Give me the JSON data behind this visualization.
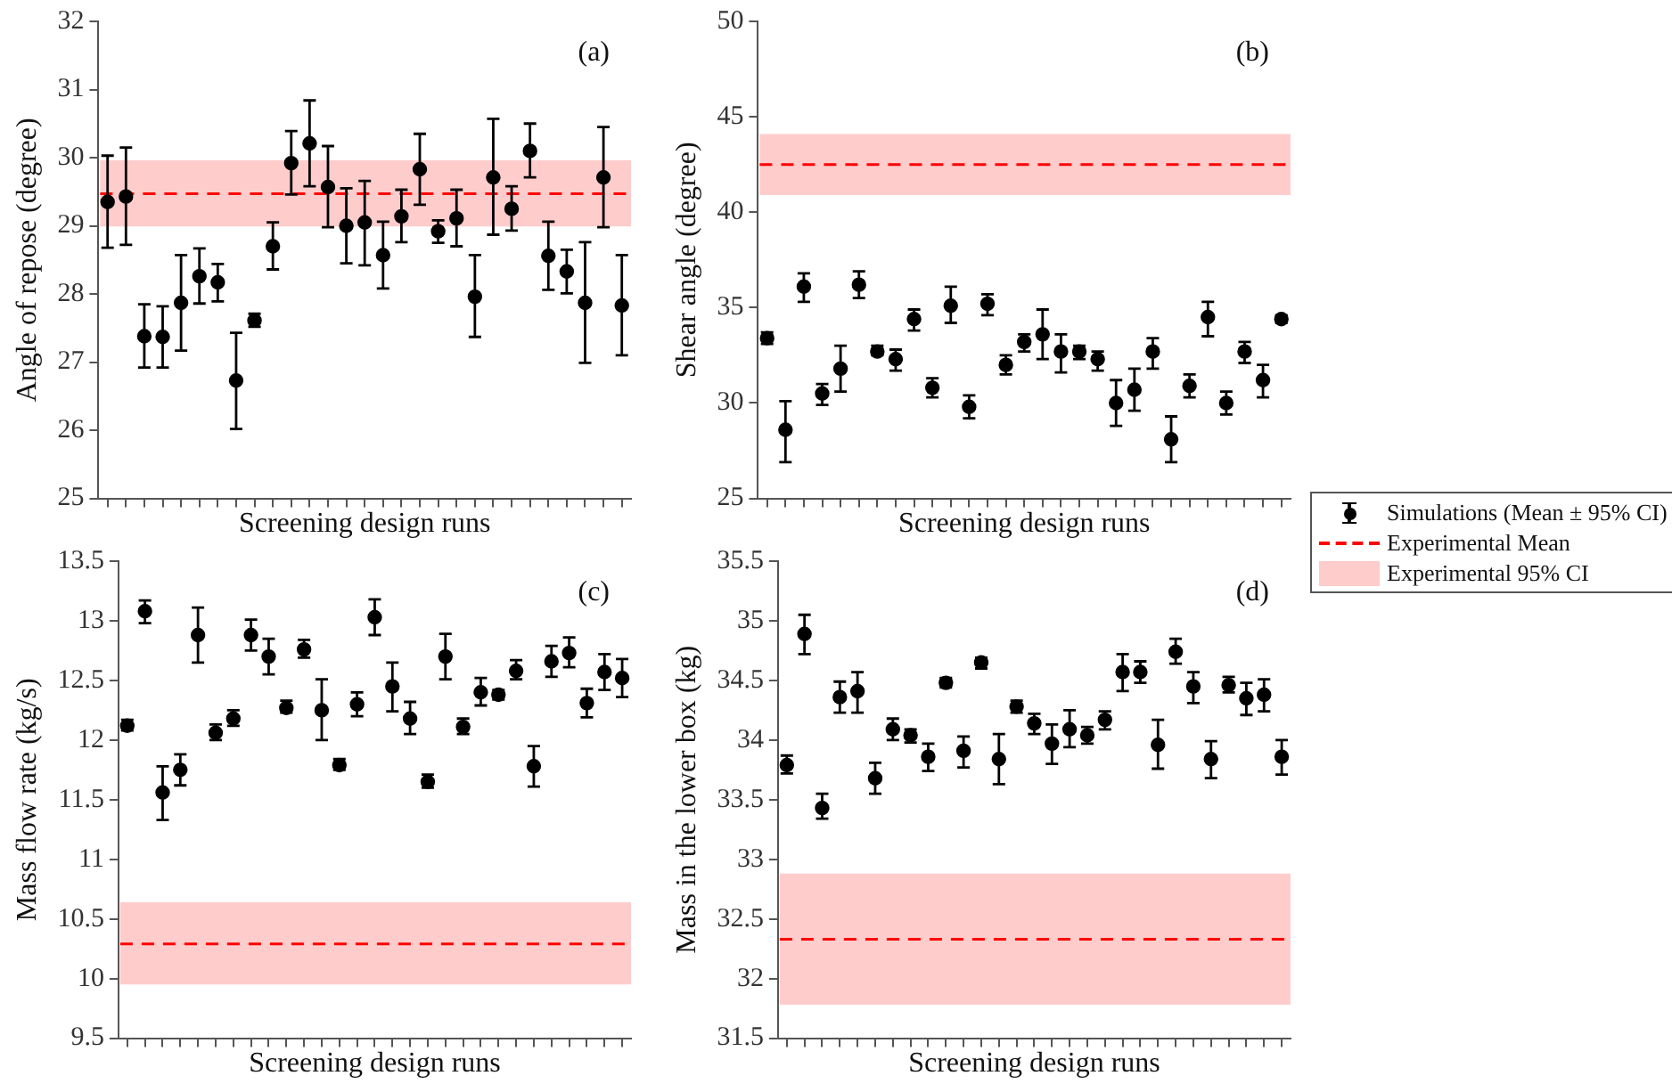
{
  "chart_data": [
    {
      "type": "scatter",
      "ylabel": "Angle of repose (degree)",
      "xlabel": "Screening design runs",
      "annotations": [
        "(a)"
      ],
      "marker": "circle",
      "categories": [
        null,
        null,
        null,
        null,
        null,
        null,
        null,
        null,
        null,
        null,
        null,
        null,
        null,
        null,
        null,
        null,
        null,
        null,
        null,
        null,
        null,
        null,
        null,
        null,
        null,
        null,
        null,
        null,
        null
      ],
      "series": [
        {
          "color": "#000000",
          "values": [
            29.35,
            29.43,
            27.38,
            27.37,
            27.87,
            28.26,
            28.17,
            26.73,
            27.61,
            28.7,
            29.92,
            30.21,
            29.57,
            29.0,
            29.05,
            28.57,
            29.14,
            29.83,
            28.92,
            29.11,
            27.96,
            29.71,
            29.25,
            30.1,
            28.56,
            28.33,
            27.87,
            29.71,
            27.83
          ],
          "errors": [
            [
              28.68,
              30.03
            ],
            [
              28.72,
              30.15
            ],
            [
              26.92,
              27.85
            ],
            [
              26.92,
              27.82
            ],
            [
              27.17,
              28.57
            ],
            [
              27.86,
              28.67
            ],
            [
              27.89,
              28.44
            ],
            [
              26.02,
              27.43
            ],
            [
              27.52,
              27.71
            ],
            [
              28.36,
              29.05
            ],
            [
              29.46,
              30.39
            ],
            [
              29.58,
              30.84
            ],
            [
              28.98,
              30.17
            ],
            [
              28.45,
              29.55
            ],
            [
              28.42,
              29.66
            ],
            [
              28.08,
              29.06
            ],
            [
              28.76,
              29.53
            ],
            [
              29.31,
              30.35
            ],
            [
              28.75,
              29.08
            ],
            [
              28.7,
              29.53
            ],
            [
              27.37,
              28.57
            ],
            [
              28.87,
              30.57
            ],
            [
              28.93,
              29.58
            ],
            [
              29.71,
              30.5
            ],
            [
              28.06,
              29.06
            ],
            [
              28.01,
              28.65
            ],
            [
              26.99,
              28.76
            ],
            [
              28.98,
              30.45
            ],
            [
              27.1,
              28.57
            ]
          ]
        }
      ],
      "ylim": [
        25,
        32
      ],
      "yticks": [
        25,
        26,
        27,
        28,
        29,
        30,
        31,
        32
      ],
      "ref_lines": [
        {
          "axis": "y",
          "value": 29.47,
          "color": "#ff0000",
          "line_style": "dashed"
        }
      ],
      "bands": [
        {
          "axis": "y",
          "from": 28.99,
          "to": 29.96,
          "color": "#ffcccc"
        }
      ]
    },
    {
      "type": "scatter",
      "ylabel": "Shear angle (degree)",
      "xlabel": "Screening design runs",
      "annotations": [
        "(b)"
      ],
      "marker": "circle",
      "legend": "right",
      "categories": [
        null,
        null,
        null,
        null,
        null,
        null,
        null,
        null,
        null,
        null,
        null,
        null,
        null,
        null,
        null,
        null,
        null,
        null,
        null,
        null,
        null,
        null,
        null,
        null,
        null,
        null,
        null,
        null,
        null
      ],
      "series": [
        {
          "name": "Simulations (Mean ± 95% CI)",
          "color": "#000000",
          "values": [
            33.4,
            28.6,
            36.1,
            30.5,
            31.8,
            36.2,
            32.7,
            32.3,
            34.4,
            30.8,
            35.1,
            29.8,
            35.2,
            32.0,
            33.2,
            33.6,
            32.7,
            32.7,
            32.3,
            30.0,
            30.7,
            32.7,
            28.1,
            30.9,
            34.5,
            30.0,
            32.7,
            31.2,
            34.4
          ],
          "errors": [
            [
              33.1,
              33.7
            ],
            [
              26.9,
              30.1
            ],
            [
              35.3,
              36.8
            ],
            [
              29.9,
              31.0
            ],
            [
              30.6,
              33.0
            ],
            [
              35.5,
              36.9
            ],
            [
              32.5,
              33.0
            ],
            [
              31.7,
              32.8
            ],
            [
              33.8,
              34.9
            ],
            [
              30.3,
              31.3
            ],
            [
              34.2,
              36.1
            ],
            [
              29.2,
              30.4
            ],
            [
              34.6,
              35.7
            ],
            [
              31.5,
              32.5
            ],
            [
              32.7,
              33.6
            ],
            [
              32.3,
              34.9
            ],
            [
              31.6,
              33.6
            ],
            [
              32.3,
              33.0
            ],
            [
              31.7,
              32.7
            ],
            [
              28.8,
              31.2
            ],
            [
              29.6,
              31.8
            ],
            [
              31.8,
              33.4
            ],
            [
              26.9,
              29.3
            ],
            [
              30.3,
              31.5
            ],
            [
              33.5,
              35.3
            ],
            [
              29.4,
              30.6
            ],
            [
              32.1,
              33.2
            ],
            [
              30.3,
              32.0
            ],
            [
              34.2,
              34.6
            ]
          ]
        }
      ],
      "ylim": [
        25,
        50
      ],
      "yticks": [
        25,
        30,
        35,
        40,
        45,
        50
      ],
      "ref_lines": [
        {
          "axis": "y",
          "value": 42.5,
          "label": "Experimental Mean",
          "color": "#ff0000",
          "line_style": "dashed"
        }
      ],
      "bands": [
        {
          "axis": "y",
          "from": 40.9,
          "to": 44.1,
          "label": "Experimental 95% CI",
          "color": "#ffcccc"
        }
      ]
    },
    {
      "type": "scatter",
      "ylabel": "Mass flow rate (kg/s)",
      "xlabel": "Screening design runs",
      "annotations": [
        "(c)"
      ],
      "marker": "circle",
      "categories": [
        null,
        null,
        null,
        null,
        null,
        null,
        null,
        null,
        null,
        null,
        null,
        null,
        null,
        null,
        null,
        null,
        null,
        null,
        null,
        null,
        null,
        null,
        null,
        null,
        null,
        null,
        null,
        null,
        null
      ],
      "series": [
        {
          "color": "#000000",
          "values": [
            12.12,
            13.08,
            11.56,
            11.75,
            12.88,
            12.06,
            12.18,
            12.88,
            12.7,
            12.27,
            12.76,
            12.25,
            11.79,
            12.3,
            13.03,
            12.45,
            12.18,
            11.65,
            12.7,
            12.11,
            12.4,
            12.38,
            12.58,
            11.78,
            12.66,
            12.73,
            12.31,
            12.57,
            12.52
          ],
          "errors": [
            [
              12.08,
              12.17
            ],
            [
              12.98,
              13.17
            ],
            [
              11.33,
              11.78
            ],
            [
              11.62,
              11.88
            ],
            [
              12.65,
              13.11
            ],
            [
              12.0,
              12.13
            ],
            [
              12.12,
              12.25
            ],
            [
              12.75,
              13.01
            ],
            [
              12.55,
              12.85
            ],
            [
              12.23,
              12.33
            ],
            [
              12.69,
              12.84
            ],
            [
              12.0,
              12.51
            ],
            [
              11.75,
              11.84
            ],
            [
              12.2,
              12.4
            ],
            [
              12.88,
              13.18
            ],
            [
              12.24,
              12.65
            ],
            [
              12.05,
              12.32
            ],
            [
              11.6,
              11.71
            ],
            [
              12.51,
              12.89
            ],
            [
              12.05,
              12.18
            ],
            [
              12.29,
              12.52
            ],
            [
              12.34,
              12.42
            ],
            [
              12.51,
              12.67
            ],
            [
              11.61,
              11.95
            ],
            [
              12.53,
              12.79
            ],
            [
              12.61,
              12.86
            ],
            [
              12.19,
              12.43
            ],
            [
              12.42,
              12.72
            ],
            [
              12.36,
              12.68
            ]
          ]
        }
      ],
      "ylim": [
        9.5,
        13.5
      ],
      "yticks": [
        9.5,
        10,
        10.5,
        11,
        11.5,
        12,
        12.5,
        13,
        13.5
      ],
      "ref_lines": [
        {
          "axis": "y",
          "value": 10.29,
          "color": "#ff0000",
          "line_style": "dashed"
        }
      ],
      "bands": [
        {
          "axis": "y",
          "from": 9.95,
          "to": 10.64,
          "color": "#ffcccc"
        }
      ]
    },
    {
      "type": "scatter",
      "ylabel": "Mass in the lower box (kg)",
      "xlabel": "Screening design runs",
      "annotations": [
        "(d)"
      ],
      "marker": "circle",
      "categories": [
        null,
        null,
        null,
        null,
        null,
        null,
        null,
        null,
        null,
        null,
        null,
        null,
        null,
        null,
        null,
        null,
        null,
        null,
        null,
        null,
        null,
        null,
        null,
        null,
        null,
        null,
        null,
        null,
        null
      ],
      "series": [
        {
          "color": "#000000",
          "values": [
            33.79,
            34.89,
            33.43,
            34.36,
            34.41,
            33.68,
            34.09,
            34.04,
            33.86,
            34.48,
            33.91,
            34.65,
            33.84,
            34.28,
            34.14,
            33.97,
            34.09,
            34.04,
            34.17,
            34.57,
            34.57,
            33.96,
            34.74,
            34.45,
            33.84,
            34.46,
            34.35,
            34.38,
            33.86
          ],
          "errors": [
            [
              33.72,
              33.87
            ],
            [
              34.72,
              35.05
            ],
            [
              33.34,
              33.55
            ],
            [
              34.23,
              34.49
            ],
            [
              34.23,
              34.57
            ],
            [
              33.55,
              33.81
            ],
            [
              34.0,
              34.18
            ],
            [
              33.98,
              34.09
            ],
            [
              33.74,
              33.97
            ],
            [
              34.44,
              34.52
            ],
            [
              33.77,
              34.03
            ],
            [
              34.6,
              34.69
            ],
            [
              33.63,
              34.05
            ],
            [
              34.23,
              34.33
            ],
            [
              34.05,
              34.22
            ],
            [
              33.8,
              34.13
            ],
            [
              33.94,
              34.25
            ],
            [
              33.97,
              34.11
            ],
            [
              34.09,
              34.24
            ],
            [
              34.41,
              34.72
            ],
            [
              34.48,
              34.66
            ],
            [
              33.76,
              34.17
            ],
            [
              34.64,
              34.85
            ],
            [
              34.31,
              34.57
            ],
            [
              33.68,
              33.99
            ],
            [
              34.4,
              34.53
            ],
            [
              34.21,
              34.48
            ],
            [
              34.24,
              34.51
            ],
            [
              33.71,
              34.0
            ]
          ]
        }
      ],
      "ylim": [
        31.5,
        35.5
      ],
      "yticks": [
        31.5,
        32,
        32.5,
        33,
        33.5,
        34,
        34.5,
        35,
        35.5
      ],
      "ref_lines": [
        {
          "axis": "y",
          "value": 32.33,
          "color": "#ff0000",
          "line_style": "dashed"
        }
      ],
      "bands": [
        {
          "axis": "y",
          "from": 31.78,
          "to": 32.88,
          "color": "#ffcccc"
        }
      ]
    }
  ]
}
